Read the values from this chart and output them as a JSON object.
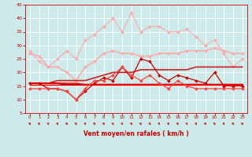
{
  "title": "",
  "xlabel": "Vent moyen/en rafales ( km/h )",
  "ylabel": "",
  "background_color": "#cceaea",
  "grid_color": "#aacccc",
  "xlim": [
    -0.5,
    23.5
  ],
  "ylim": [
    5,
    45
  ],
  "yticks": [
    5,
    10,
    15,
    20,
    25,
    30,
    35,
    40,
    45
  ],
  "xticks": [
    0,
    1,
    2,
    3,
    4,
    5,
    6,
    7,
    8,
    9,
    10,
    11,
    12,
    13,
    14,
    15,
    16,
    17,
    18,
    19,
    20,
    21,
    22,
    23
  ],
  "x": [
    0,
    1,
    2,
    3,
    4,
    5,
    6,
    7,
    8,
    9,
    10,
    11,
    12,
    13,
    14,
    15,
    16,
    17,
    18,
    19,
    20,
    21,
    22,
    23
  ],
  "lines": [
    {
      "y": [
        28,
        24,
        22,
        25,
        28,
        25,
        32,
        34,
        37,
        40,
        35,
        42,
        35,
        37,
        37,
        35,
        35,
        36,
        33,
        30,
        32,
        27,
        22,
        25
      ],
      "color": "#ffaaaa",
      "lw": 0.8,
      "marker": "D",
      "ms": 2.0,
      "zorder": 3
    },
    {
      "y": [
        27,
        26,
        22,
        22,
        20,
        17,
        22,
        24,
        27,
        28,
        27,
        27,
        26,
        26,
        27,
        27,
        27,
        28,
        28,
        28,
        29,
        28,
        27,
        27
      ],
      "color": "#ffaaaa",
      "lw": 1.2,
      "marker": "D",
      "ms": 2.0,
      "zorder": 3
    },
    {
      "y": [
        16,
        16,
        16,
        17,
        17,
        17,
        17,
        18,
        19,
        20,
        20,
        20,
        21,
        21,
        21,
        21,
        21,
        21,
        22,
        22,
        22,
        22,
        22,
        22
      ],
      "color": "#cc2222",
      "lw": 1.2,
      "marker": null,
      "ms": 0,
      "zorder": 4
    },
    {
      "y": [
        16,
        16,
        16,
        16,
        16,
        16,
        15.5,
        15.5,
        15.5,
        15.5,
        15.5,
        15.5,
        15.5,
        15.5,
        15.5,
        15.5,
        15.5,
        15.5,
        15.5,
        15.5,
        15.5,
        15.5,
        15.5,
        15.5
      ],
      "color": "#ff0000",
      "lw": 1.0,
      "marker": null,
      "ms": 0,
      "zorder": 4
    },
    {
      "y": [
        16,
        16,
        14,
        14,
        13,
        10,
        13,
        16,
        18,
        17,
        22,
        18,
        25,
        24,
        19,
        17,
        19,
        18,
        17,
        16,
        20,
        15,
        15,
        15
      ],
      "color": "#cc0000",
      "lw": 0.9,
      "marker": "D",
      "ms": 2.0,
      "zorder": 5
    },
    {
      "y": [
        14,
        14,
        14,
        14,
        13,
        10,
        14,
        17,
        17,
        19,
        22,
        19,
        17,
        19,
        16,
        14,
        17,
        15,
        14,
        14,
        14,
        14,
        14,
        14
      ],
      "color": "#ff4444",
      "lw": 0.9,
      "marker": "D",
      "ms": 2.0,
      "zorder": 5
    },
    {
      "y": [
        16,
        16,
        16,
        16,
        15.5,
        15.5,
        15.5,
        15.5,
        15.5,
        15.5,
        15.5,
        15.5,
        15.5,
        15.5,
        15.5,
        15.5,
        15.5,
        15.5,
        15.5,
        15.5,
        15.5,
        15.5,
        15.5,
        15.5
      ],
      "color": "#880000",
      "lw": 1.5,
      "marker": null,
      "ms": 0,
      "zorder": 3
    },
    {
      "y": [
        15.5,
        15.5,
        15.5,
        15.5,
        15.5,
        15.5,
        15.5,
        15.5,
        15.5,
        15.5,
        15.5,
        15.5,
        15.5,
        15.5,
        15.5,
        15.5,
        15.5,
        15.5,
        15.5,
        15.5,
        15.5,
        15.5,
        15.5,
        15.5
      ],
      "color": "#ff0000",
      "lw": 1.0,
      "marker": null,
      "ms": 0,
      "zorder": 3
    }
  ],
  "arrow_color": "#cc0000",
  "xlabel_color": "#cc0000",
  "tick_color": "#cc0000"
}
